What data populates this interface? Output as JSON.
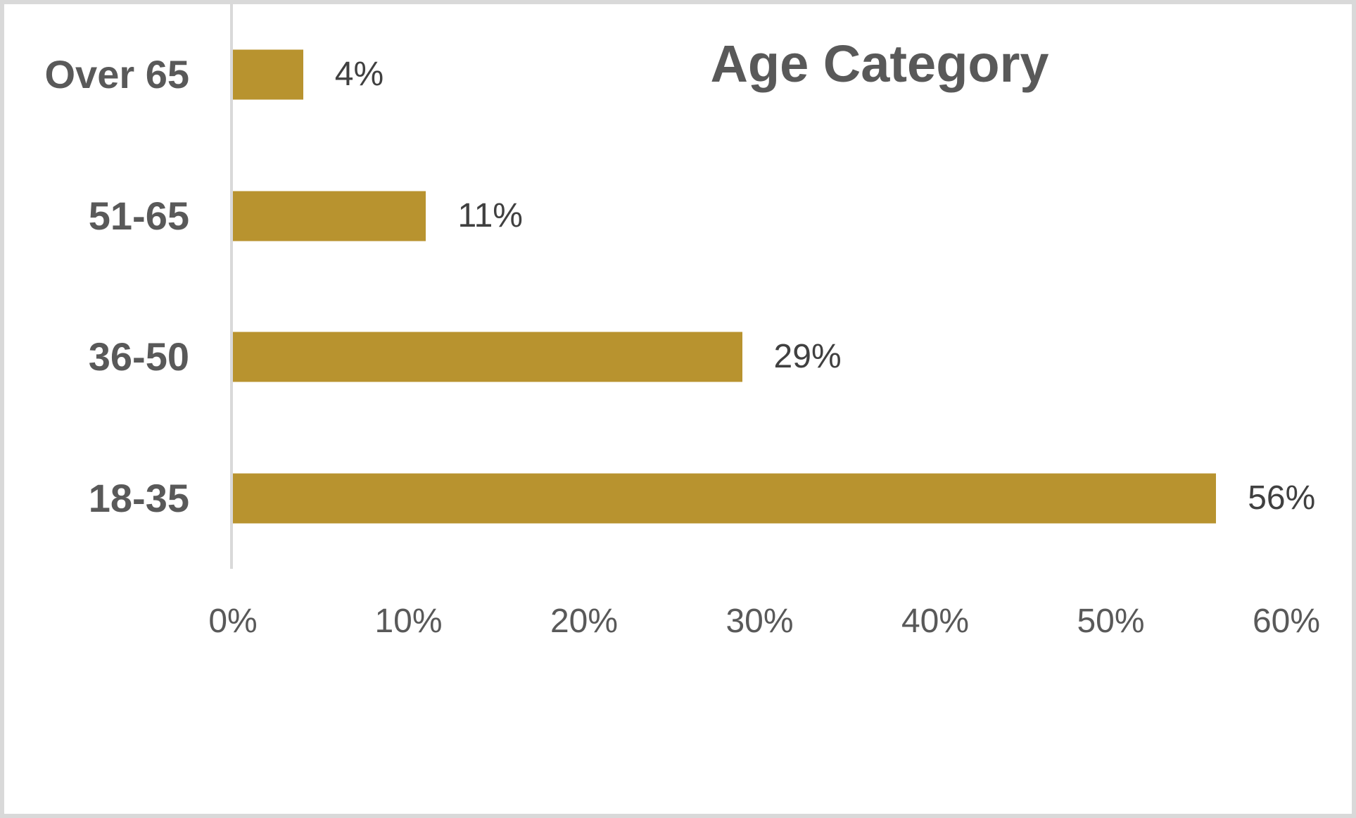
{
  "chart_data": {
    "type": "bar",
    "orientation": "horizontal",
    "title": "Age Category",
    "categories": [
      "Over 65",
      "51-65",
      "36-50",
      "18-35"
    ],
    "values": [
      4,
      11,
      29,
      56
    ],
    "data_labels": [
      "4%",
      "11%",
      "29%",
      "56%"
    ],
    "x_ticks": [
      "0%",
      "10%",
      "20%",
      "30%",
      "40%",
      "50%",
      "60%"
    ],
    "x_tick_values": [
      0,
      10,
      20,
      30,
      40,
      50,
      60
    ],
    "xlim": [
      0,
      60
    ],
    "xlabel": "",
    "ylabel": "",
    "grid": false,
    "legend_position": "none",
    "colors": {
      "bar": "#B8932F",
      "title_text": "#595959",
      "category_text": "#595959",
      "tick_text": "#595959",
      "value_text": "#404040",
      "axis_line": "#D9D9D9",
      "frame_border": "#D9D9D9",
      "background": "#FFFFFF"
    }
  }
}
